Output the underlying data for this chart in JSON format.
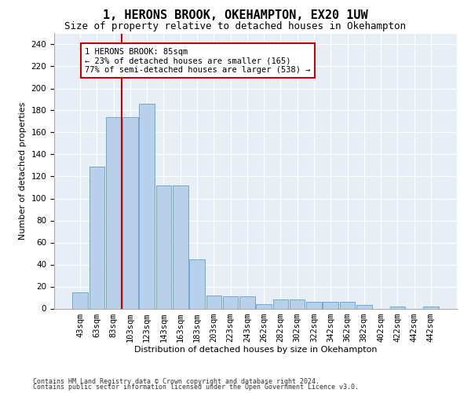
{
  "title1": "1, HERONS BROOK, OKEHAMPTON, EX20 1UW",
  "title2": "Size of property relative to detached houses in Okehampton",
  "xlabel": "Distribution of detached houses by size in Okehampton",
  "ylabel": "Number of detached properties",
  "bar_values": [
    15,
    129,
    174,
    174,
    186,
    112,
    112,
    45,
    12,
    11,
    11,
    4,
    8,
    8,
    6,
    6,
    6,
    3,
    0,
    2,
    0,
    2
  ],
  "x_labels": [
    "43sqm",
    "63sqm",
    "83sqm",
    "103sqm",
    "123sqm",
    "143sqm",
    "163sqm",
    "183sqm",
    "203sqm",
    "223sqm",
    "243sqm",
    "262sqm",
    "282sqm",
    "302sqm",
    "322sqm",
    "342sqm",
    "362sqm",
    "382sqm",
    "402sqm",
    "422sqm",
    "442sqm",
    "442sqm"
  ],
  "bar_color": "#b8d0ea",
  "bar_edge_color": "#6fa8d0",
  "annotation_line1": "1 HERONS BROOK: 85sqm",
  "annotation_line2": "← 23% of detached houses are smaller (165)",
  "annotation_line3": "77% of semi-detached houses are larger (538) →",
  "annotation_box_color": "#ffffff",
  "annotation_box_edge": "#cc0000",
  "marker_line_color": "#cc0000",
  "ylim": [
    0,
    250
  ],
  "yticks": [
    0,
    20,
    40,
    60,
    80,
    100,
    120,
    140,
    160,
    180,
    200,
    220,
    240
  ],
  "footer1": "Contains HM Land Registry data © Crown copyright and database right 2024.",
  "footer2": "Contains public sector information licensed under the Open Government Licence v3.0.",
  "bg_color": "#e8eef6",
  "title1_fontsize": 11,
  "title2_fontsize": 9,
  "axis_label_fontsize": 8,
  "tick_fontsize": 7.5,
  "footer_fontsize": 6
}
